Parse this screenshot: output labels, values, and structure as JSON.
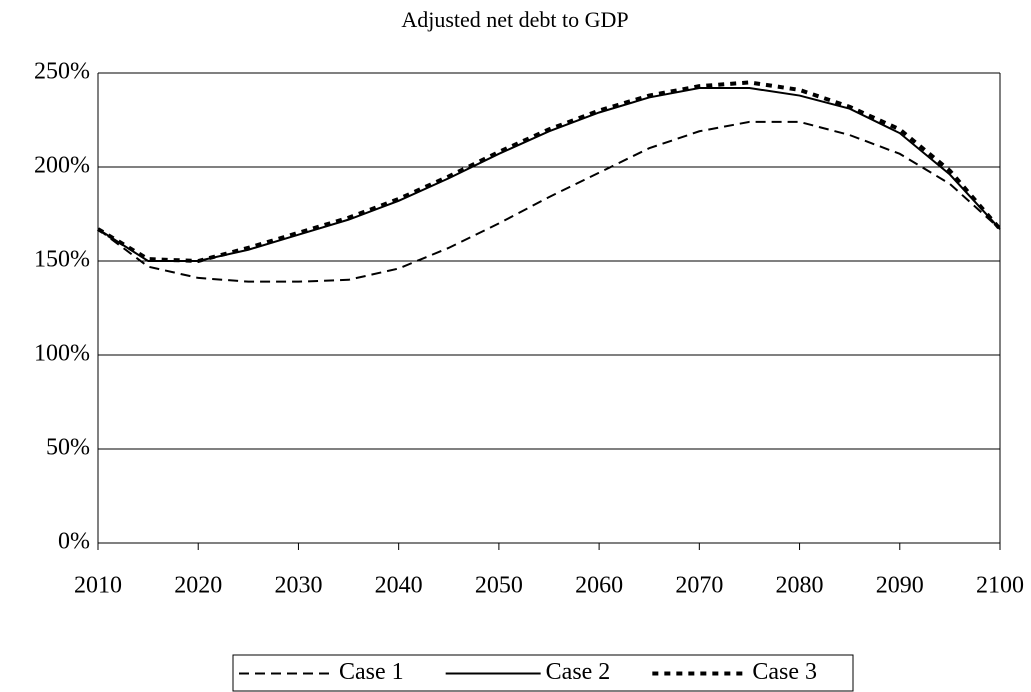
{
  "chart_data": {
    "type": "line",
    "title": "Adjusted net debt to GDP",
    "x": [
      2010,
      2015,
      2020,
      2025,
      2030,
      2035,
      2040,
      2045,
      2050,
      2055,
      2060,
      2065,
      2070,
      2075,
      2080,
      2085,
      2090,
      2095,
      2100
    ],
    "series": [
      {
        "name": "Case 1",
        "color": "#000000",
        "dash": "dashed",
        "values": [
          167,
          147,
          141,
          139,
          139,
          140,
          146,
          157,
          170,
          184,
          197,
          210,
          219,
          224,
          224,
          217,
          207,
          191,
          167
        ]
      },
      {
        "name": "Case 2",
        "color": "#000000",
        "dash": "solid",
        "values": [
          167,
          150,
          150,
          156,
          164,
          172,
          182,
          194,
          207,
          219,
          229,
          237,
          242,
          242,
          238,
          231,
          218,
          196,
          167
        ]
      },
      {
        "name": "Case 3",
        "color": "#000000",
        "dash": "dotted",
        "values": [
          167,
          151,
          150,
          157,
          165,
          173,
          183,
          195,
          208,
          220,
          230,
          238,
          243,
          245,
          241,
          232,
          220,
          198,
          167
        ]
      }
    ],
    "xlim": [
      2010,
      2100
    ],
    "xticks": [
      2010,
      2020,
      2030,
      2040,
      2050,
      2060,
      2070,
      2080,
      2090,
      2100
    ],
    "ylim": [
      0,
      250
    ],
    "yticks": [
      {
        "value": 0,
        "label": "0%"
      },
      {
        "value": 50,
        "label": "50%"
      },
      {
        "value": 100,
        "label": "100%"
      },
      {
        "value": 150,
        "label": "150%"
      },
      {
        "value": 200,
        "label": "200%"
      },
      {
        "value": 250,
        "label": "250%"
      }
    ],
    "grid": true,
    "legend": "bottom"
  }
}
